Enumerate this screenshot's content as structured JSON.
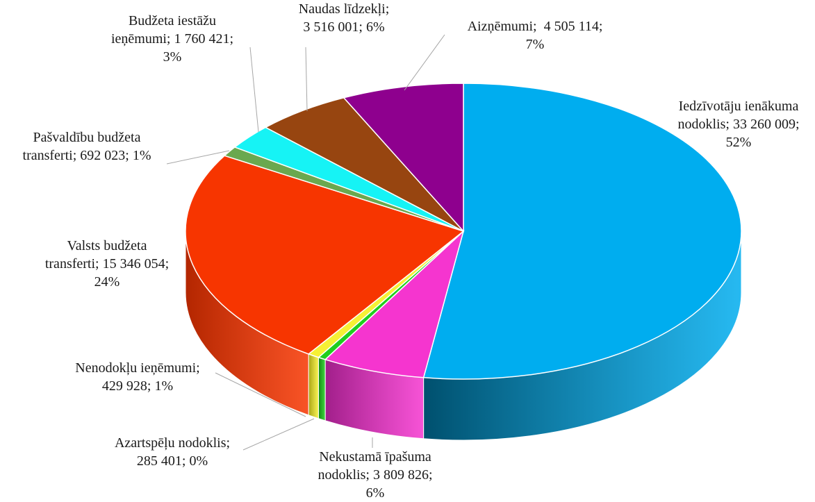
{
  "chart_data": {
    "type": "pie",
    "style": "3d-pie",
    "slices": [
      {
        "label_lines": [
          "Iedzīvotāju ienākuma",
          "nodoklis; 33 260 009;",
          "52%"
        ],
        "category": "Iedzīvotāju ienākuma nodoklis",
        "value": 33260009,
        "percent_label": "52%",
        "color": "#00adef",
        "side_color": "#00506e"
      },
      {
        "label_lines": [
          "Nekustamā īpašuma",
          "nodoklis; 3 809 826;",
          "6%"
        ],
        "category": "Nekustamā īpašuma nodoklis",
        "value": 3809826,
        "percent_label": "6%",
        "color": "#f535cf",
        "side_color": "#a11f8a"
      },
      {
        "label_lines": [
          "Azartspēļu nodoklis;",
          "285 401; 0%"
        ],
        "category": "Azartspēļu nodoklis",
        "value": 285401,
        "percent_label": "0%",
        "color": "#1fce1f",
        "side_color": "#128a12"
      },
      {
        "label_lines": [
          "Nenodokļu ieņēmumi;",
          "429 928; 1%"
        ],
        "category": "Nenodokļu ieņēmumi",
        "value": 429928,
        "percent_label": "1%",
        "color": "#f6f035",
        "side_color": "#a8a315"
      },
      {
        "label_lines": [
          "Valsts budžeta",
          "transferti; 15 346 054;",
          "24%"
        ],
        "category": "Valsts budžeta transferti",
        "value": 15346054,
        "percent_label": "24%",
        "color": "#f73500",
        "side_color": "#b32600"
      },
      {
        "label_lines": [
          "Pašvaldību budžeta",
          "transferti; 692 023; 1%"
        ],
        "category": "Pašvaldību budžeta transferti",
        "value": 692023,
        "percent_label": "1%",
        "color": "#6aa84f",
        "side_color": "#466f34"
      },
      {
        "label_lines": [
          "Budžeta iestāžu",
          "ieņēmumi; 1 760 421;",
          "3%"
        ],
        "category": "Budžeta iestāžu ieņēmumi",
        "value": 1760421,
        "percent_label": "3%",
        "color": "#16f3f5",
        "side_color": "#0fa7a8"
      },
      {
        "label_lines": [
          "Naudas līdzekļi;",
          "3 516 001; 6%"
        ],
        "category": "Naudas līdzekļi",
        "value": 3516001,
        "percent_label": "6%",
        "color": "#974510",
        "side_color": "#63290a"
      },
      {
        "label_lines": [
          "Aizņēmumi;  4 505 114;",
          "7%"
        ],
        "category": "Aizņēmumi",
        "value": 4505114,
        "percent_label": "7%",
        "color": "#8e008e",
        "side_color": "#5a005a"
      }
    ],
    "start_angle_deg": -90,
    "direction": "clockwise",
    "legend": "none",
    "data_labels": "outside-with-leader-lines"
  }
}
